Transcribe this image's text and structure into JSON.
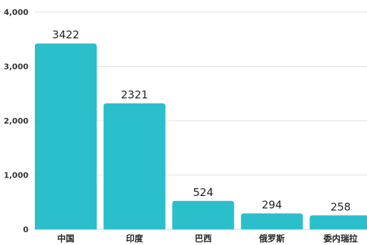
{
  "chart_data": {
    "type": "bar",
    "categories": [
      "中国",
      "印度",
      "巴西",
      "俄罗斯",
      "委内瑞拉"
    ],
    "values": [
      3422,
      2321,
      524,
      294,
      258
    ],
    "data_labels": [
      "3422",
      "2321",
      "524",
      "294",
      "258"
    ],
    "title": "",
    "xlabel": "",
    "ylabel": "",
    "ylim": [
      0,
      4000
    ],
    "y_ticks": [
      0,
      1000,
      2000,
      3000,
      4000
    ],
    "y_tick_labels": [
      "0",
      "1,000",
      "2,000",
      "3,000",
      "4,000"
    ],
    "grid": true,
    "legend": "none",
    "bar_color": "#2bbfcc"
  }
}
